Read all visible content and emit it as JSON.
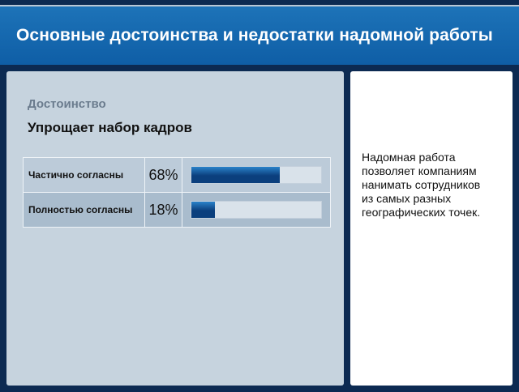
{
  "header": {
    "title": "Основные достоинства и недостатки надомной работы"
  },
  "left_panel": {
    "subtitle": "Достоинство",
    "heading": "Упрощает набор кадров",
    "rows": [
      {
        "label": "Частично согласны",
        "percent_text": "68%",
        "value": 68
      },
      {
        "label": "Полностью согласны",
        "percent_text": "18%",
        "value": 18
      }
    ]
  },
  "right_panel": {
    "lines": [
      "Надомная работа",
      "позволяет компаниям",
      "нанимать сотрудников",
      "из самых разных",
      "географических точек."
    ]
  },
  "colors": {
    "background": "#0c2a52",
    "header": "#1167ae",
    "bar_fill": "#0b3f7d",
    "left_panel": "#c6d3de"
  }
}
